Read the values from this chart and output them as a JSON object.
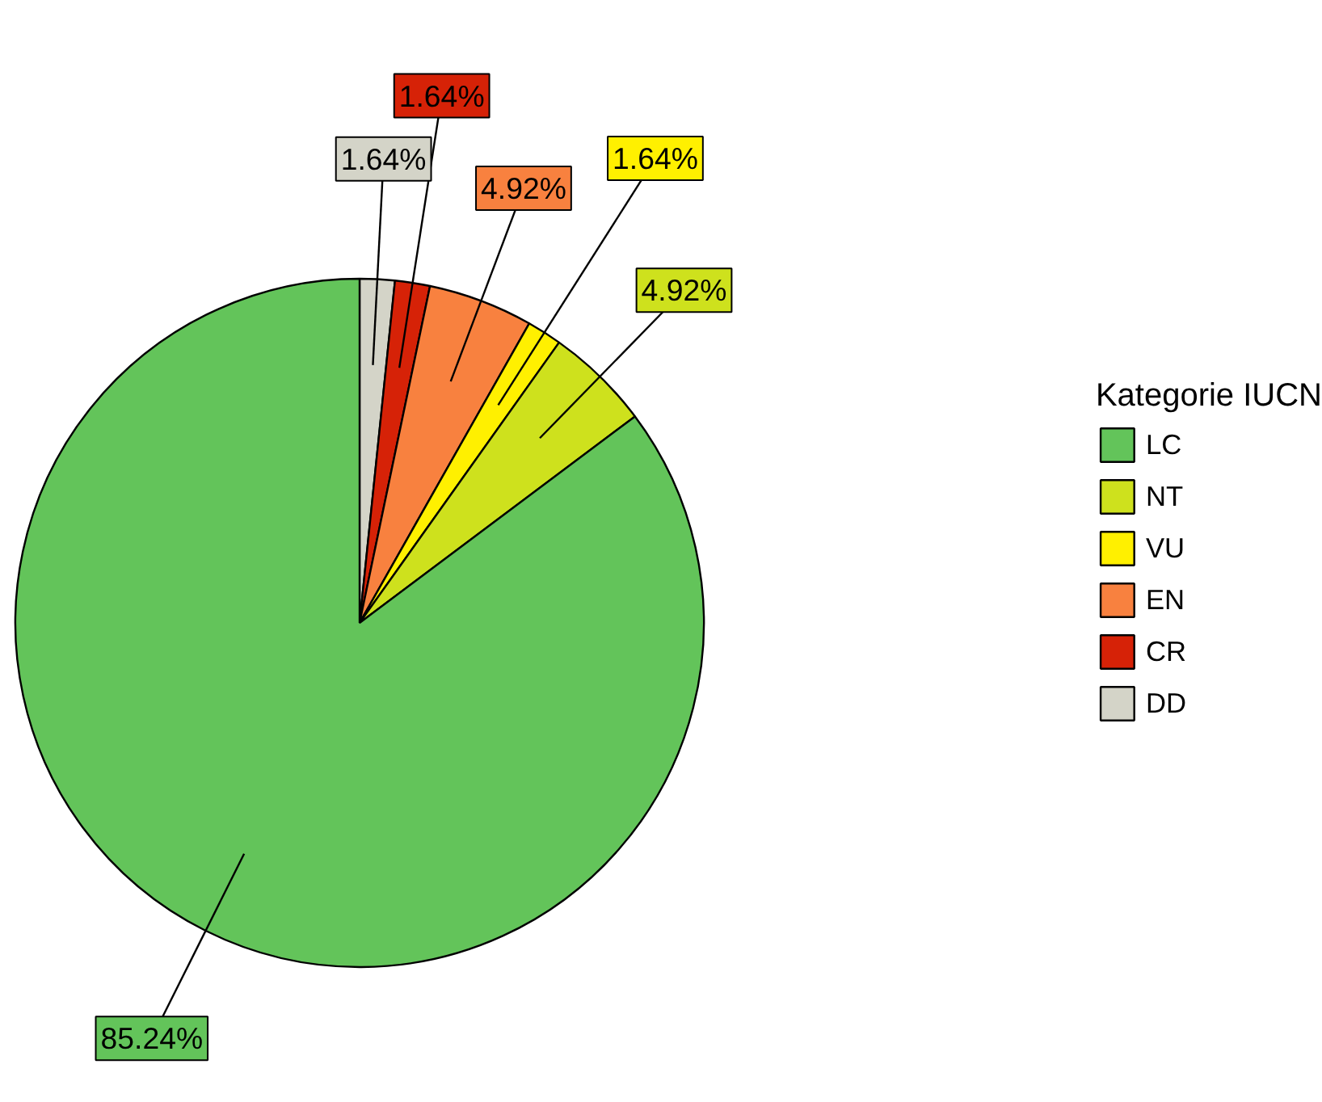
{
  "chart_data": {
    "type": "pie",
    "legend_title": "Kategorie IUCN",
    "legend": "right",
    "categories": [
      "LC",
      "NT",
      "VU",
      "EN",
      "CR",
      "DD"
    ],
    "values": [
      85.24,
      4.92,
      1.64,
      4.92,
      1.64,
      1.64
    ],
    "value_labels": [
      "85.24%",
      "4.92%",
      "1.64%",
      "4.92%",
      "1.64%",
      "1.64%"
    ],
    "colors": [
      "#63c45a",
      "#cee11d",
      "#fff000",
      "#f8813f",
      "#d62207",
      "#d4d4c8"
    ]
  }
}
